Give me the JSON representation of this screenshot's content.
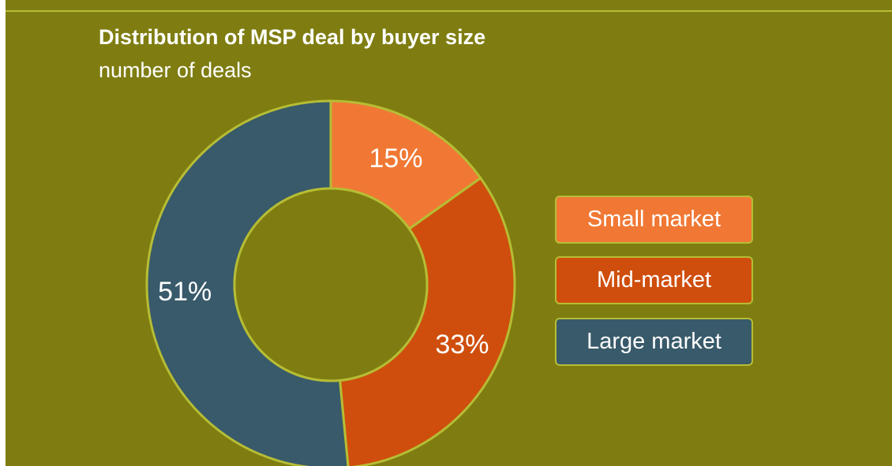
{
  "chart_data": {
    "type": "pie",
    "title": "Distribution of MSP deal by buyer size",
    "subtitle": "number of deals",
    "donut": true,
    "legend_position": "right",
    "categories": [
      "Small market",
      "Mid-market",
      "Large market"
    ],
    "values": [
      15,
      33,
      51
    ],
    "labels": [
      "15%",
      "33%",
      "51%"
    ],
    "colors": [
      "#f07834",
      "#cf4e0d",
      "#385a6a"
    ]
  },
  "theme": {
    "background": "#7f7d11",
    "accent_line": "#b6bd34",
    "text": "#ffffff"
  }
}
